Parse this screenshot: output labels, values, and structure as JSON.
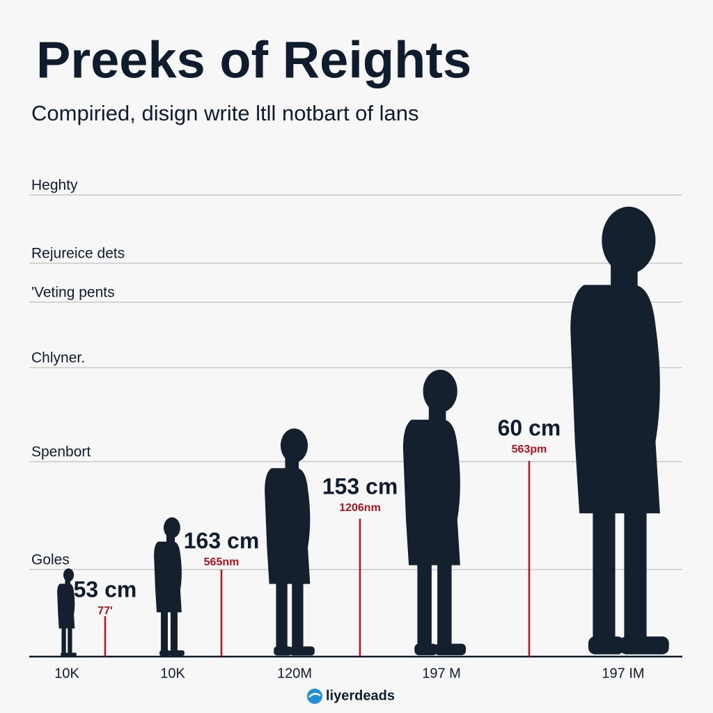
{
  "header": {
    "title": "Preeks of Reights",
    "subtitle": "Compiried, disign write ltll notbart of lans"
  },
  "guides": [
    "Heghty",
    "Rejureice dets",
    "'Veting pents",
    "Chlyner.",
    "Spenbort",
    "Goles"
  ],
  "figures": [
    {
      "height_label": "53 cm",
      "sub_label": "77'",
      "base_label": "10K"
    },
    {
      "height_label": "163 cm",
      "sub_label": "565nm",
      "base_label": "10K"
    },
    {
      "height_label": "153 cm",
      "sub_label": "1206nm",
      "base_label": "120M"
    },
    {
      "height_label": "60 cm",
      "sub_label": "563pm",
      "base_label": "197 M"
    },
    {
      "base_label": "197 IM"
    }
  ],
  "footer": {
    "logo": "liyerdeads"
  }
}
